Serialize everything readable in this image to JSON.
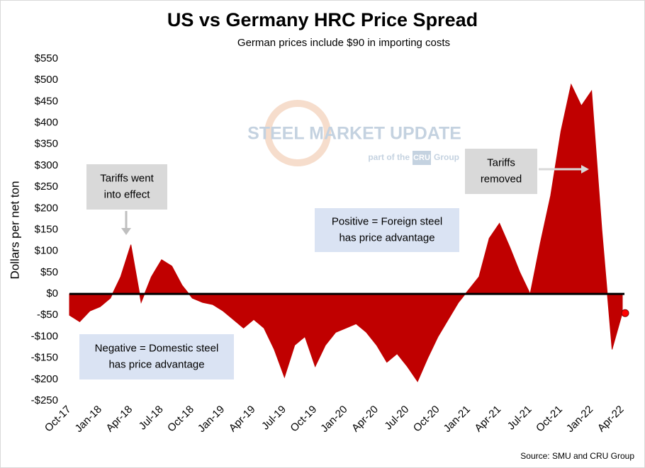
{
  "chart_data": {
    "type": "area",
    "title": "US vs Germany HRC Price Spread",
    "subtitle": "German prices include $90 in importing costs",
    "y_label": "Dollars per net ton",
    "source": "Source: SMU and CRU Group",
    "watermark": {
      "brand": "STEEL MARKET UPDATE",
      "tagline": "part of the",
      "group_logo": "CRU",
      "group": "Group"
    },
    "annotations": [
      {
        "lines": [
          "Tariffs went",
          "into effect"
        ],
        "color": "#d9d9d9"
      },
      {
        "lines": [
          "Positive = Foreign steel",
          "has price advantage"
        ],
        "color": "#dae3f3"
      },
      {
        "lines": [
          "Negative = Domestic steel",
          "has price advantage"
        ],
        "color": "#dae3f3"
      },
      {
        "lines": [
          "Tariffs",
          "removed"
        ],
        "color": "#d9d9d9"
      }
    ],
    "categories": [
      "Oct-17",
      null,
      null,
      "Jan-18",
      null,
      null,
      "Apr-18",
      null,
      null,
      "Jul-18",
      null,
      null,
      "Oct-18",
      null,
      null,
      "Jan-19",
      null,
      null,
      "Apr-19",
      null,
      null,
      "Jul-19",
      null,
      null,
      "Oct-19",
      null,
      null,
      "Jan-20",
      null,
      null,
      "Apr-20",
      null,
      null,
      "Jul-20",
      null,
      null,
      "Oct-20",
      null,
      null,
      "Jan-21",
      null,
      null,
      "Apr-21",
      null,
      null,
      "Jul-21",
      null,
      null,
      "Oct-21",
      null,
      null,
      "Jan-22",
      null,
      null,
      "Apr-22"
    ],
    "series": [
      {
        "name": "Spread",
        "color": "#c00000",
        "values": [
          -50,
          -65,
          -40,
          -30,
          -10,
          40,
          115,
          -20,
          40,
          80,
          65,
          20,
          -10,
          -20,
          -25,
          -40,
          -60,
          -80,
          -60,
          -80,
          -130,
          -195,
          -120,
          -100,
          -170,
          -120,
          -90,
          -80,
          -70,
          -90,
          -120,
          -160,
          -140,
          -170,
          -205,
          -150,
          -100,
          -60,
          -20,
          10,
          40,
          130,
          165,
          110,
          50,
          0,
          120,
          230,
          380,
          490,
          440,
          475,
          150,
          -130,
          -45
        ]
      }
    ],
    "ylim": [
      -250,
      550
    ],
    "yticks": [
      {
        "value": -250,
        "label": "-$250"
      },
      {
        "value": -200,
        "label": "-$200"
      },
      {
        "value": -150,
        "label": "-$150"
      },
      {
        "value": -100,
        "label": "-$100"
      },
      {
        "value": -50,
        "label": "-$50"
      },
      {
        "value": 0,
        "label": "$0"
      },
      {
        "value": 50,
        "label": "$50"
      },
      {
        "value": 100,
        "label": "$100"
      },
      {
        "value": 150,
        "label": "$150"
      },
      {
        "value": 200,
        "label": "$200"
      },
      {
        "value": 250,
        "label": "$250"
      },
      {
        "value": 300,
        "label": "$300"
      },
      {
        "value": 350,
        "label": "$350"
      },
      {
        "value": 400,
        "label": "$400"
      },
      {
        "value": 450,
        "label": "$450"
      },
      {
        "value": 500,
        "label": "$500"
      },
      {
        "value": 550,
        "label": "$550"
      }
    ],
    "grid": false
  }
}
